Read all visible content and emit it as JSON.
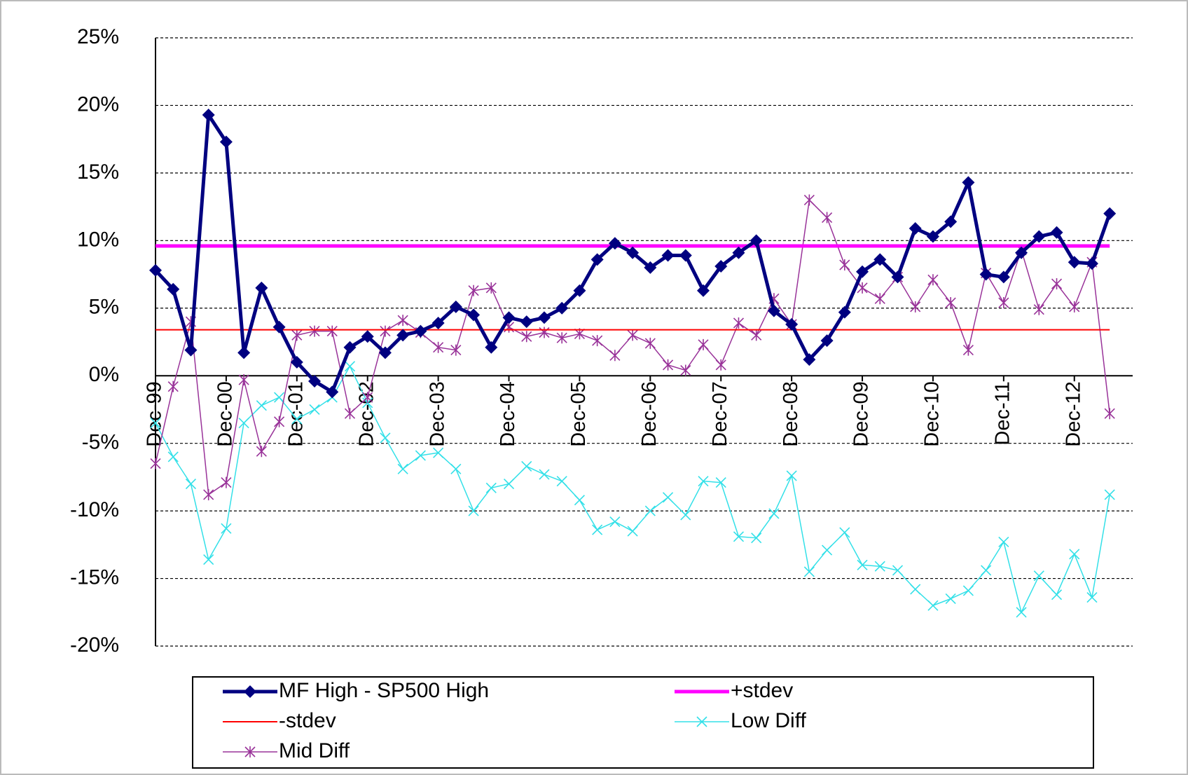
{
  "chart_data": {
    "type": "line",
    "categories": [
      "Dec-99",
      null,
      null,
      null,
      "Dec-00",
      null,
      null,
      null,
      "Dec-01",
      null,
      null,
      null,
      "Dec-02",
      null,
      null,
      null,
      "Dec-03",
      null,
      null,
      null,
      "Dec-04",
      null,
      null,
      null,
      "Dec-05",
      null,
      null,
      null,
      "Dec-06",
      null,
      null,
      null,
      "Dec-07",
      null,
      null,
      null,
      "Dec-08",
      null,
      null,
      null,
      "Dec-09",
      null,
      null,
      null,
      "Dec-10",
      null,
      null,
      null,
      "Dec-11",
      null,
      null,
      null,
      "Dec-12",
      null,
      null
    ],
    "series": [
      {
        "name": "MF High - SP500 High",
        "color": "#000080",
        "marker": "diamond",
        "line_width": 5,
        "values": [
          7.8,
          6.4,
          1.9,
          19.3,
          17.3,
          1.7,
          6.5,
          3.6,
          1.0,
          -0.4,
          -1.2,
          2.1,
          2.9,
          1.7,
          3.0,
          3.3,
          3.9,
          5.1,
          4.5,
          2.1,
          4.3,
          4.0,
          4.3,
          5.0,
          6.3,
          8.6,
          9.8,
          9.1,
          8.0,
          8.9,
          8.9,
          6.3,
          8.1,
          9.1,
          10.0,
          4.8,
          3.8,
          1.2,
          2.6,
          4.7,
          7.7,
          8.6,
          7.3,
          10.9,
          10.3,
          11.4,
          14.3,
          7.5,
          7.3,
          9.1,
          10.3,
          10.6,
          8.4,
          8.3,
          12.0
        ]
      },
      {
        "name": "+stdev",
        "color": "#ff00ff",
        "marker": "none",
        "line_width": 5,
        "values": [
          9.6,
          9.6,
          9.6,
          9.6,
          9.6,
          9.6,
          9.6,
          9.6,
          9.6,
          9.6,
          9.6,
          9.6,
          9.6,
          9.6,
          9.6,
          9.6,
          9.6,
          9.6,
          9.6,
          9.6,
          9.6,
          9.6,
          9.6,
          9.6,
          9.6,
          9.6,
          9.6,
          9.6,
          9.6,
          9.6,
          9.6,
          9.6,
          9.6,
          9.6,
          9.6,
          9.6,
          9.6,
          9.6,
          9.6,
          9.6,
          9.6,
          9.6,
          9.6,
          9.6,
          9.6,
          9.6,
          9.6,
          9.6,
          9.6,
          9.6,
          9.6,
          9.6,
          9.6,
          9.6,
          9.6
        ]
      },
      {
        "name": "-stdev",
        "color": "#ff0000",
        "marker": "none",
        "line_width": 2,
        "values": [
          3.4,
          3.4,
          3.4,
          3.4,
          3.4,
          3.4,
          3.4,
          3.4,
          3.4,
          3.4,
          3.4,
          3.4,
          3.4,
          3.4,
          3.4,
          3.4,
          3.4,
          3.4,
          3.4,
          3.4,
          3.4,
          3.4,
          3.4,
          3.4,
          3.4,
          3.4,
          3.4,
          3.4,
          3.4,
          3.4,
          3.4,
          3.4,
          3.4,
          3.4,
          3.4,
          3.4,
          3.4,
          3.4,
          3.4,
          3.4,
          3.4,
          3.4,
          3.4,
          3.4,
          3.4,
          3.4,
          3.4,
          3.4,
          3.4,
          3.4,
          3.4,
          3.4,
          3.4,
          3.4,
          3.4
        ]
      },
      {
        "name": "Low Diff",
        "color": "#33e0e8",
        "marker": "x",
        "line_width": 1.5,
        "values": [
          -3.5,
          -6.0,
          -8.0,
          -13.6,
          -11.3,
          -3.5,
          -2.2,
          -1.6,
          -3.2,
          -2.5,
          -1.6,
          0.7,
          -2.0,
          -4.6,
          -6.9,
          -5.9,
          -5.7,
          -6.9,
          -10.0,
          -8.3,
          -8.0,
          -6.7,
          -7.3,
          -7.8,
          -9.2,
          -11.4,
          -10.8,
          -11.5,
          -10.0,
          -9.0,
          -10.3,
          -7.8,
          -7.9,
          -11.9,
          -12.0,
          -10.2,
          -7.4,
          -14.5,
          -12.9,
          -11.6,
          -14.0,
          -14.1,
          -14.4,
          -15.8,
          -17.0,
          -16.5,
          -15.9,
          -14.4,
          -12.3,
          -17.5,
          -14.8,
          -16.2,
          -13.2,
          -16.4,
          -8.8
        ]
      },
      {
        "name": "Mid Diff",
        "color": "#993399",
        "marker": "star",
        "line_width": 1.5,
        "values": [
          -6.5,
          -0.8,
          4.0,
          -8.8,
          -7.9,
          -0.3,
          -5.6,
          -3.4,
          3.0,
          3.3,
          3.3,
          -2.8,
          -1.6,
          3.3,
          4.1,
          3.2,
          2.1,
          1.9,
          6.3,
          6.5,
          3.6,
          2.9,
          3.2,
          2.8,
          3.1,
          2.6,
          1.5,
          3.0,
          2.4,
          0.8,
          0.4,
          2.3,
          0.8,
          3.9,
          3.0,
          5.7,
          3.8,
          13.0,
          11.7,
          8.2,
          6.5,
          5.7,
          7.3,
          5.1,
          7.1,
          5.4,
          1.9,
          7.6,
          5.4,
          9.3,
          4.9,
          6.8,
          5.1,
          8.4,
          -2.8
        ]
      }
    ],
    "ylim": [
      -20,
      25
    ],
    "yticks": [
      {
        "value": -20,
        "label": "-20%"
      },
      {
        "value": -15,
        "label": "-15%"
      },
      {
        "value": -10,
        "label": "-10%"
      },
      {
        "value": -5,
        "label": "-5%"
      },
      {
        "value": 0,
        "label": "0%"
      },
      {
        "value": 5,
        "label": "5%"
      },
      {
        "value": 10,
        "label": "10%"
      },
      {
        "value": 15,
        "label": "15%"
      },
      {
        "value": 20,
        "label": "20%"
      },
      {
        "value": 25,
        "label": "25%"
      }
    ],
    "grid": true,
    "legend": "bottom"
  }
}
